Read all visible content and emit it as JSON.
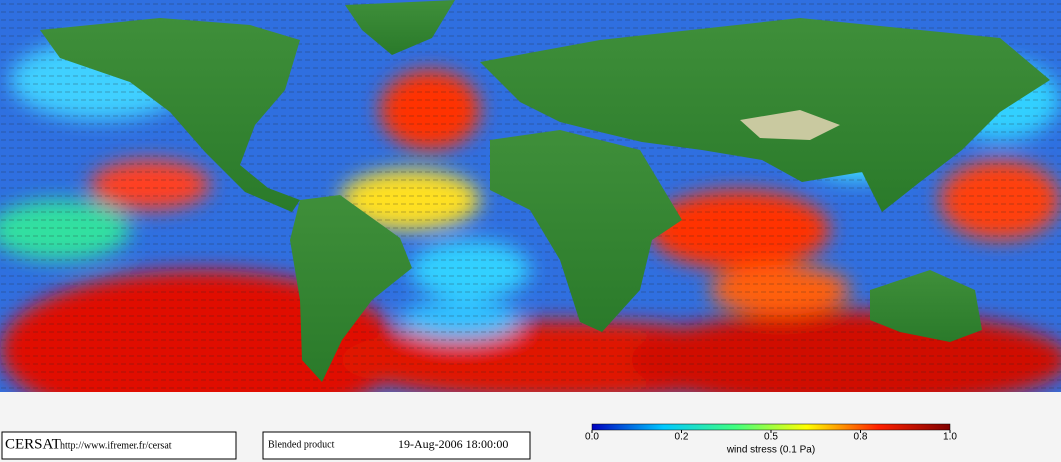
{
  "footer": {
    "logo": "CERSAT",
    "url": "http://www.ifremer.fr/cersat",
    "product": "Blended product",
    "datetime": "19-Aug-2006 18:00:00"
  },
  "colorbar": {
    "ticks": [
      {
        "value": 0,
        "label": "0.0"
      },
      {
        "value": 0.2,
        "label": "0.2"
      },
      {
        "value": 0.5,
        "label": "0.5"
      },
      {
        "value": 0.8,
        "label": "0.8"
      },
      {
        "value": 1,
        "label": "1.0"
      }
    ],
    "label": "wind stress (0.1 Pa)",
    "colors": [
      "#0000c0",
      "#00c8ff",
      "#40ff80",
      "#ffff00",
      "#ff2000",
      "#800000"
    ]
  }
}
